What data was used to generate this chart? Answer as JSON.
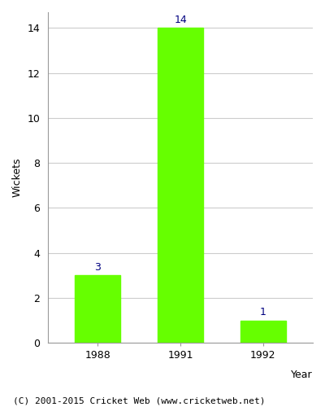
{
  "years": [
    "1988",
    "1991",
    "1992"
  ],
  "values": [
    3,
    14,
    1
  ],
  "bar_color": "#66ff00",
  "bar_edge_color": "#66ff00",
  "ylabel": "Wickets",
  "xlabel": "Year",
  "ylim": [
    0,
    14.7
  ],
  "yticks": [
    0,
    2,
    4,
    6,
    8,
    10,
    12,
    14
  ],
  "label_color": "#000080",
  "label_fontsize": 9,
  "axis_fontsize": 9,
  "tick_fontsize": 9,
  "footer_text": "(C) 2001-2015 Cricket Web (www.cricketweb.net)",
  "footer_fontsize": 8,
  "background_color": "#ffffff",
  "grid_color": "#cccccc",
  "bar_width": 0.55
}
